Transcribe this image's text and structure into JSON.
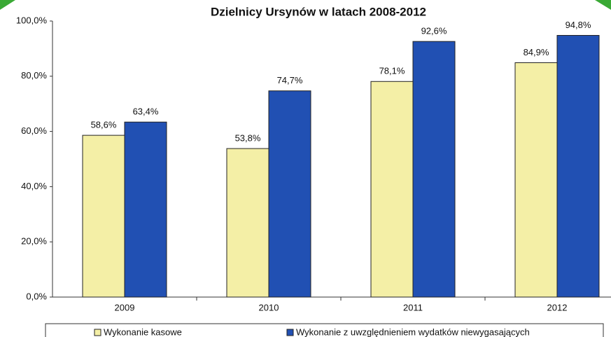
{
  "chart_data": {
    "type": "bar",
    "title": "Dzielnicy Ursynów w latach 2008-2012",
    "categories": [
      "2009",
      "2010",
      "2011",
      "2012"
    ],
    "series": [
      {
        "name": "Wykonanie kasowe",
        "color": "#f4efa6",
        "values": [
          58.6,
          53.8,
          78.1,
          84.9
        ],
        "value_labels": [
          "58,6%",
          "53,8%",
          "78,1%",
          "84,9%"
        ]
      },
      {
        "name": "Wykonanie z uwzględnieniem wydatków niewygasających",
        "color": "#2150b3",
        "values": [
          63.4,
          74.7,
          92.6,
          94.8
        ],
        "value_labels": [
          "63,4%",
          "74,7%",
          "92,6%",
          "94,8%"
        ]
      }
    ],
    "ylim": [
      0,
      100
    ],
    "yticks": [
      {
        "value": 0,
        "label": "0,0%"
      },
      {
        "value": 20,
        "label": "20,0%"
      },
      {
        "value": 40,
        "label": "40,0%"
      },
      {
        "value": 60,
        "label": "60,0%"
      },
      {
        "value": 80,
        "label": "80,0%"
      },
      {
        "value": 100,
        "label": "100,0%"
      }
    ],
    "legend": "bottom"
  }
}
